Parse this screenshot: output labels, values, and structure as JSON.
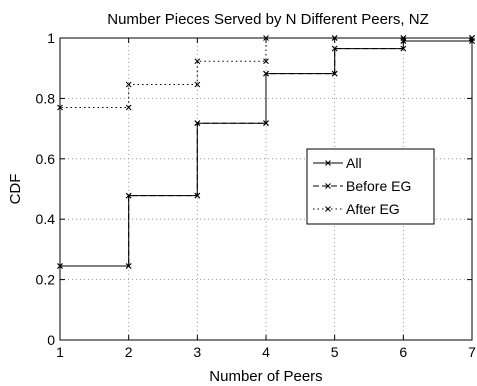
{
  "chart_data": {
    "type": "line",
    "step": true,
    "title": "Number Pieces Served by N Different Peers, NZ",
    "xlabel": "Number of Peers",
    "ylabel": "CDF",
    "xlim": [
      1,
      7
    ],
    "ylim": [
      0,
      1
    ],
    "x_ticks": [
      "1",
      "2",
      "3",
      "4",
      "5",
      "6",
      "7"
    ],
    "y_ticks": [
      "0",
      "0.2",
      "0.4",
      "0.6",
      "0.8",
      "1"
    ],
    "grid": true,
    "legend_position": "center-right",
    "series": [
      {
        "name": "All",
        "line_style": "solid",
        "marker": "x",
        "x": [
          1,
          2,
          3,
          4,
          5,
          6,
          7
        ],
        "y": [
          0.245,
          0.478,
          0.718,
          0.882,
          0.965,
          0.99,
          1.0
        ]
      },
      {
        "name": "Before EG",
        "line_style": "dashed",
        "marker": "x",
        "x": [
          1,
          2,
          3,
          4,
          5,
          6,
          7
        ],
        "y": [
          0.245,
          0.478,
          0.718,
          0.882,
          0.965,
          0.99,
          1.0
        ]
      },
      {
        "name": "After EG",
        "line_style": "dotted",
        "marker": "x",
        "x": [
          1,
          2,
          3,
          4,
          5,
          6,
          7
        ],
        "y": [
          0.77,
          0.846,
          0.923,
          1.0,
          1.0,
          1.0,
          1.0
        ]
      }
    ]
  }
}
